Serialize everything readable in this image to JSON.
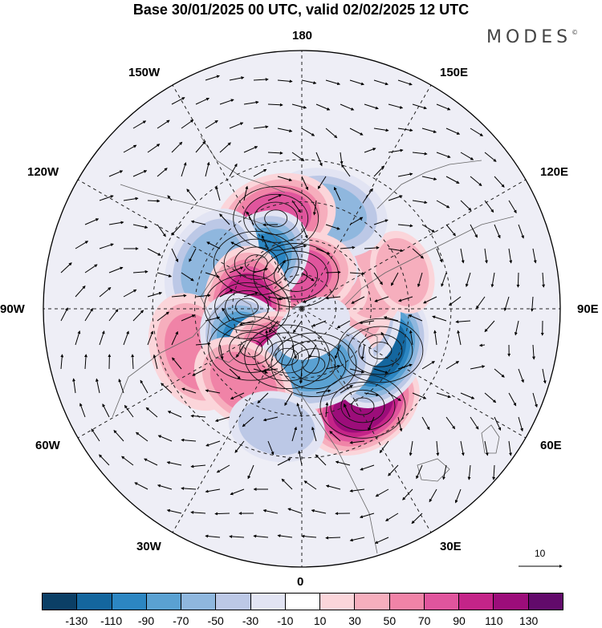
{
  "title": "Base 30/01/2025 00 UTC, valid 02/02/2025 12 UTC",
  "brand": {
    "name": "MODES",
    "mark": "©"
  },
  "map": {
    "projection": "north-polar-stereographic",
    "longitude_labels": {
      "top": "180",
      "bottom": "0",
      "left": "90W",
      "right": "90E",
      "upper_left": "150W",
      "upper_right": "150E",
      "left_upper": "120W",
      "right_upper": "120E",
      "left_lower": "60W",
      "right_lower": "60E",
      "lower_left": "30W",
      "lower_right": "30E"
    },
    "anomalies": [
      {
        "lat": 42,
        "lon": 32,
        "value": 120
      },
      {
        "lat": 52,
        "lon": 62,
        "value": -120
      },
      {
        "lat": 62,
        "lon": 78,
        "value": -40
      },
      {
        "lat": 66,
        "lon": 95,
        "value": 40
      },
      {
        "lat": 60,
        "lon": 112,
        "value": 35
      },
      {
        "lat": 45,
        "lon": 110,
        "value": 30
      },
      {
        "lat": 72,
        "lon": 135,
        "value": 30
      },
      {
        "lat": 70,
        "lon": 165,
        "value": -35
      },
      {
        "lat": 48,
        "lon": 165,
        "value": -60
      },
      {
        "lat": 50,
        "lon": -164,
        "value": 70
      },
      {
        "lat": 75,
        "lon": -170,
        "value": 80
      },
      {
        "lat": 62,
        "lon": -135,
        "value": -90
      },
      {
        "lat": 48,
        "lon": -115,
        "value": -60
      },
      {
        "lat": 66,
        "lon": -92,
        "value": 100
      },
      {
        "lat": 42,
        "lon": -68,
        "value": 60
      },
      {
        "lat": 62,
        "lon": -52,
        "value": -90
      },
      {
        "lat": 68,
        "lon": -17,
        "value": 90
      },
      {
        "lat": 65,
        "lon": 12,
        "value": -80
      },
      {
        "lat": 50,
        "lon": -38,
        "value": 50
      },
      {
        "lat": 40,
        "lon": -12,
        "value": -40
      },
      {
        "lat": 80,
        "lon": 30,
        "value": -25
      }
    ]
  },
  "colorbar": {
    "colors": [
      "#0b3f66",
      "#14669e",
      "#2c86c2",
      "#5aa1d2",
      "#8fb7de",
      "#bcc8e6",
      "#e2e4f3",
      "#ffffff",
      "#fbd5da",
      "#f6aebd",
      "#f083a7",
      "#e0559d",
      "#c42488",
      "#9c0d7a",
      "#620a6b"
    ],
    "ticks": [
      "-130",
      "-110",
      "-90",
      "-70",
      "-50",
      "-30",
      "-10",
      "10",
      "30",
      "50",
      "70",
      "90",
      "110",
      "130"
    ]
  },
  "vector_scale": {
    "value": "10"
  }
}
